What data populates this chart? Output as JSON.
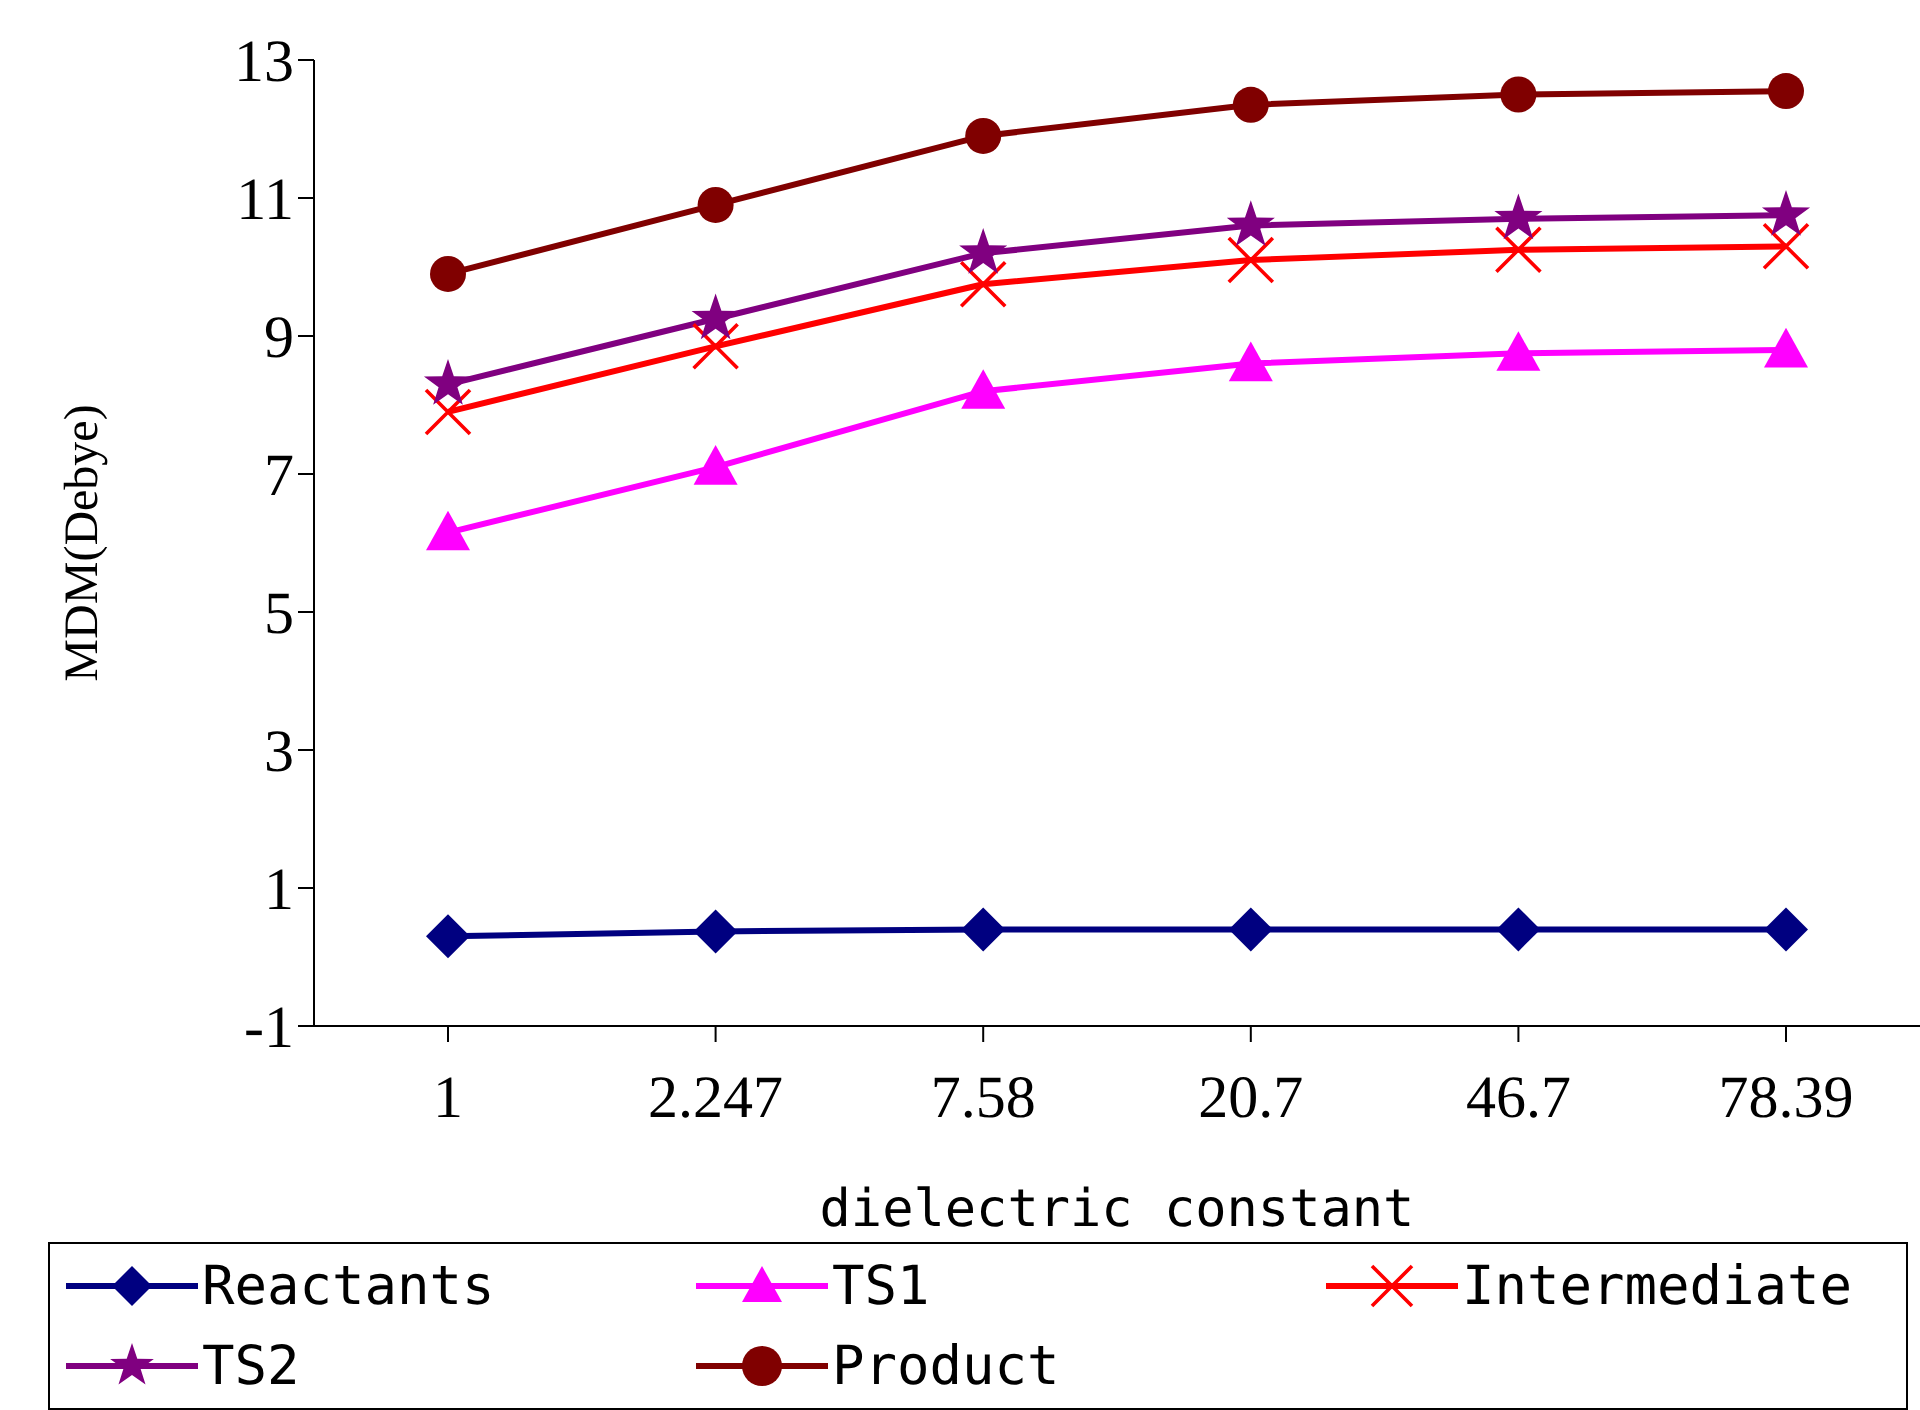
{
  "chart_data": {
    "type": "line",
    "xlabel": "dielectric constant",
    "ylabel": "MDM(Debye)",
    "categories": [
      "1",
      "2.247",
      "7.58",
      "20.7",
      "46.7",
      "78.39"
    ],
    "ylim": [
      -1,
      13
    ],
    "yticks": [
      -1,
      1,
      3,
      5,
      7,
      9,
      11,
      13
    ],
    "grid": false,
    "legend": "bottom",
    "line_style": "solid",
    "series": [
      {
        "name": "Reactants",
        "color": "#000080",
        "marker": "diamond",
        "values": [
          0.3,
          0.37,
          0.4,
          0.4,
          0.4,
          0.4
        ]
      },
      {
        "name": "TS1",
        "color": "#ff00ff",
        "marker": "triangle",
        "values": [
          6.15,
          7.1,
          8.2,
          8.6,
          8.75,
          8.8
        ]
      },
      {
        "name": "Intermediate",
        "color": "#ff0000",
        "marker": "cross",
        "values": [
          7.9,
          8.85,
          9.75,
          10.1,
          10.25,
          10.3
        ]
      },
      {
        "name": "TS2",
        "color": "#800080",
        "marker": "star",
        "values": [
          8.3,
          9.25,
          10.2,
          10.6,
          10.7,
          10.75
        ]
      },
      {
        "name": "Product",
        "color": "#800000",
        "marker": "circle",
        "values": [
          9.9,
          10.9,
          11.9,
          12.35,
          12.5,
          12.55
        ]
      }
    ]
  }
}
